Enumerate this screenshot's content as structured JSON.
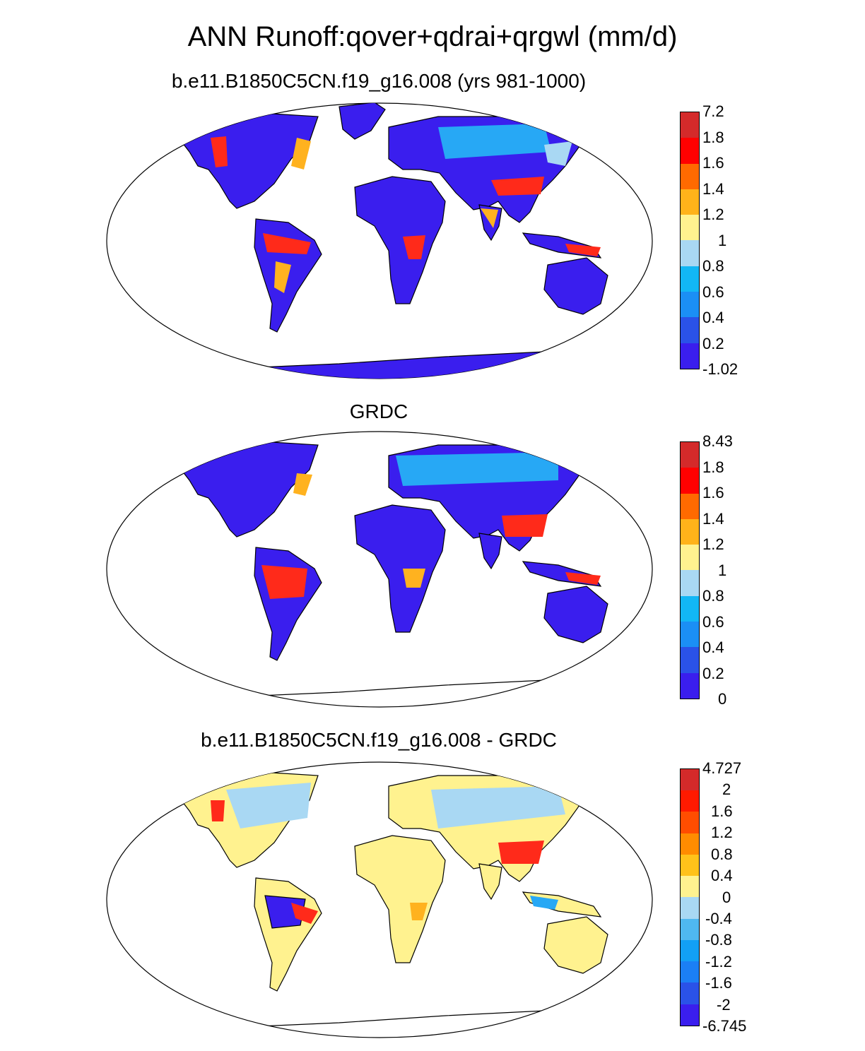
{
  "title": "ANN Runoff:qover+qdrai+qrgwl (mm/d)",
  "colors": {
    "land_model": "#3a1eee",
    "land_diff": "#fff28f",
    "ocean": "#ffffff",
    "outline": "#000000"
  },
  "panels": [
    {
      "title": "b.e11.B1850C5CN.f19_g16.008 (yrs 981-1000)",
      "colorbar": {
        "labels": [
          "7.2",
          "1.8",
          "1.6",
          "1.4",
          "1.2",
          "1",
          "0.8",
          "0.6",
          "0.4",
          "0.2",
          "-1.02"
        ],
        "colors": [
          "#d42a2a",
          "#ff0000",
          "#ff6a00",
          "#ffb31a",
          "#fff28f",
          "#a9d8f3",
          "#12b7f5",
          "#1b8ff5",
          "#2a52e8",
          "#3a1eee"
        ]
      }
    },
    {
      "title": "GRDC",
      "colorbar": {
        "labels": [
          "8.43",
          "1.8",
          "1.6",
          "1.4",
          "1.2",
          "1",
          "0.8",
          "0.6",
          "0.4",
          "0.2",
          "0"
        ],
        "colors": [
          "#d42a2a",
          "#ff0000",
          "#ff6a00",
          "#ffb31a",
          "#fff28f",
          "#a9d8f3",
          "#12b7f5",
          "#1b8ff5",
          "#2a52e8",
          "#3a1eee"
        ]
      }
    },
    {
      "title": "b.e11.B1850C5CN.f19_g16.008 - GRDC",
      "colorbar": {
        "labels": [
          "4.727",
          "2",
          "1.6",
          "1.2",
          "0.8",
          "0.4",
          "0",
          "-0.4",
          "-0.8",
          "-1.2",
          "-1.6",
          "-2",
          "-6.745"
        ],
        "colors": [
          "#d42a2a",
          "#ff1a00",
          "#ff4d00",
          "#ff8c00",
          "#ffc21a",
          "#fff28f",
          "#a9d8f3",
          "#4fb8f0",
          "#12a0f5",
          "#1b7ff5",
          "#2a52e8",
          "#3a1eee"
        ]
      }
    }
  ]
}
